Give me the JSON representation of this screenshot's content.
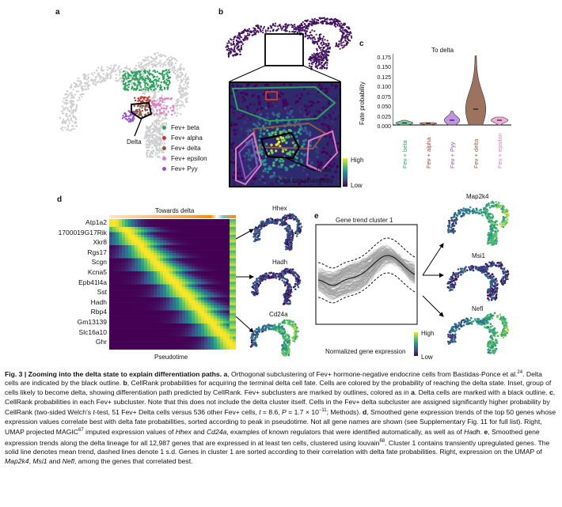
{
  "panels": {
    "a": {
      "label": "a",
      "delta_label": "Delta",
      "legend": [
        {
          "name": "Fev+ beta",
          "color": "#2ca25f"
        },
        {
          "name": "Fev+ alpha",
          "color": "#c0392b"
        },
        {
          "name": "Fev+ delta",
          "color": "#8c5a44"
        },
        {
          "name": "Fev+ epsilon",
          "color": "#e377c2"
        },
        {
          "name": "Fev+ Pyy",
          "color": "#9b4dca"
        }
      ]
    },
    "b": {
      "label": "b",
      "delta_label": "Delta",
      "colorbar_title": "Delta fate probability",
      "colorbar_high": "High",
      "colorbar_low": "Low"
    },
    "c": {
      "label": "c",
      "title": "To delta",
      "ylabel": "Fate probability",
      "yticks": [
        "0.000",
        "0.025",
        "0.050",
        "0.075",
        "0.100",
        "0.125",
        "0.150",
        "0.175"
      ],
      "categories": [
        {
          "name": "Fev + beta",
          "color": "#2ca25f"
        },
        {
          "name": "Fev + alpha",
          "color": "#c0392b"
        },
        {
          "name": "Fev + Pyy",
          "color": "#9b4dca"
        },
        {
          "name": "Fev + delta",
          "color": "#8c5a44"
        },
        {
          "name": "Fev + epsilon",
          "color": "#e377c2"
        }
      ]
    },
    "d": {
      "label": "d",
      "top_label": "Towards delta",
      "xlabel": "Pseudotime",
      "genes": [
        "Atp1a2",
        "1700019G17Rik",
        "Xkr8",
        "Rgs17",
        "Scgn",
        "Kcna5",
        "Epb41l4a",
        "Sst",
        "Hadh",
        "Rbp4",
        "Gm13139",
        "Slc16a10",
        "Ghr"
      ],
      "umap_titles": [
        "Hhex",
        "Hadh",
        "Cd24a"
      ]
    },
    "e": {
      "label": "e",
      "title": "Gene trend cluster 1",
      "colorbar_title": "Normalized gene expression",
      "colorbar_high": "High",
      "colorbar_low": "Low",
      "umap_titles": [
        "Map2k4",
        "Msi1",
        "Nefl"
      ]
    }
  },
  "chart_data": {
    "type": "violin",
    "title": "To delta",
    "xlabel": "",
    "ylabel": "Fate probability",
    "ylim": [
      0,
      0.18
    ],
    "categories": [
      "Fev + beta",
      "Fev + alpha",
      "Fev + Pyy",
      "Fev + delta",
      "Fev + epsilon"
    ],
    "medians": [
      0.005,
      0.004,
      0.012,
      0.04,
      0.012
    ],
    "maxima": [
      0.012,
      0.006,
      0.035,
      0.175,
      0.02
    ]
  },
  "caption": {
    "fig_label": "Fig. 3 | Zooming into the delta state to explain differentiation paths.",
    "text_a1": " a",
    "text_a2": ", Orthogonal subclustering of Fev+ hormone-negative endocrine cells from Bastidas-Ponce et al.",
    "ref_a": "24",
    "text_a3": ". Delta cells are indicated by the black outline. ",
    "text_b1": "b",
    "text_b2": ", CellRank probabilities for acquiring the terminal delta cell fate. Cells are colored by the probability of reaching the delta state. Inset, group of cells likely to become delta, showing differentiation path predicted by CellRank. Fev+ subclusters are marked by outlines, colored as in ",
    "text_b3": "a",
    "text_b4": ". Delta cells are marked with a black outline. ",
    "text_c1": "c",
    "text_c2": ", CellRank probabilities in each Fev+ subcluster. Note that this does not include the delta cluster itself. Cells in the Fev+ delta subcluster are assigned significantly higher probability by CellRank (two-sided Welch’s ",
    "text_c_t": "t",
    "text_c3": "-test, 51 Fev+ Delta cells versus 536 other Fev+ cells, ",
    "text_c_t2": "t",
    "text_c4": " = 8.6, ",
    "text_c_p": "P",
    "text_c5": " = 1.7 × 10",
    "text_c_exp": "−11",
    "text_c6": "; Methods). ",
    "text_d1": "d",
    "text_d2": ", Smoothed gene expression trends of the top 50 genes whose expression values correlate best with delta fate probabilities, sorted according to peak in pseudotime. Not all gene names are shown (see Supplementary Fig. 11 for full list). Right, UMAP projected MAGIC",
    "ref_d": "67",
    "text_d3": " imputed expression values of ",
    "gene_hhex": "Hhex",
    "text_d4": " and ",
    "gene_cd24a": "Cd24a",
    "text_d5": ", examples of known regulators that were identified automatically, as well as of ",
    "gene_hadh": "Hadh",
    "text_d6": ". ",
    "text_e1": "e",
    "text_e2": ", Smoothed gene expression trends along the delta lineage for all 12,987 genes that are expressed in at least ten cells, clustered using louvain",
    "ref_e": "68",
    "text_e3": ". Cluster 1 contains transiently upregulated genes. The solid line denotes mean trend, dashed lines denote 1 s.d. Genes in cluster 1 are sorted according to their correlation with delta fate probabilities. Right, expression on the UMAP of ",
    "gene_map2k4": "Map2k4",
    "text_e4": ", ",
    "gene_msi1": "Msi1",
    "text_e5": " and ",
    "gene_nefl": "Nefl",
    "text_e6": ", among the genes that correlated best."
  }
}
